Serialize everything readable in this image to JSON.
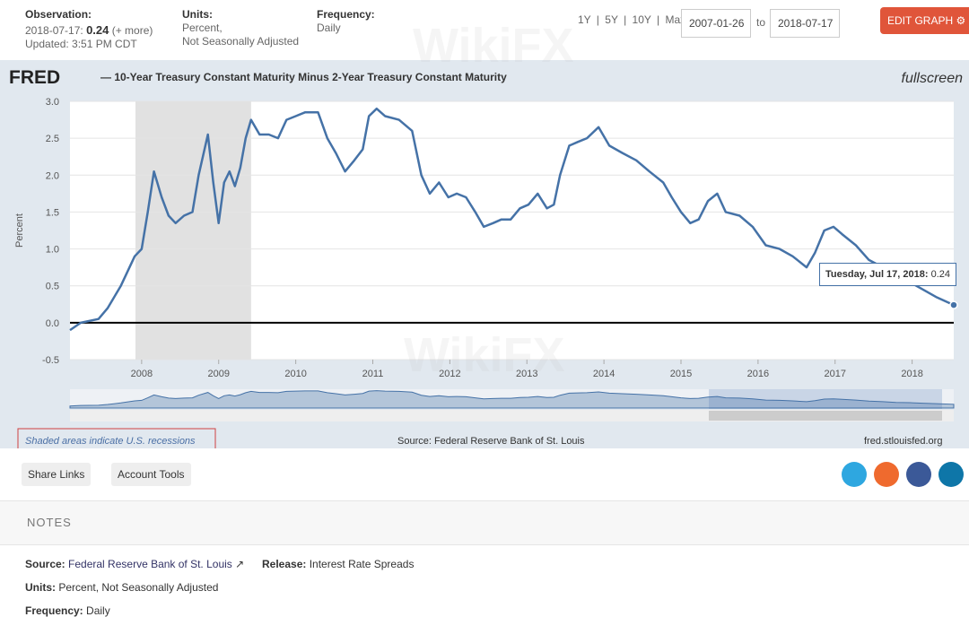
{
  "header": {
    "observation_label": "Observation:",
    "observation_date": "2018-07-17:",
    "observation_value": "0.24",
    "observation_more": "(+ more)",
    "updated": "Updated: 3:51 PM CDT",
    "units_label": "Units:",
    "units_lines": [
      "Percent,",
      "Not Seasonally Adjusted"
    ],
    "frequency_label": "Frequency:",
    "frequency": "Daily",
    "ranges": [
      "1Y",
      "5Y",
      "10Y",
      "Max"
    ],
    "start_date": "2007-01-26",
    "to": "to",
    "end_date": "2018-07-17",
    "edit_button": "EDIT GRAPH"
  },
  "chart_header": {
    "logo": "FRED",
    "title": "— 10-Year Treasury Constant Maturity Minus 2-Year Treasury Constant Maturity",
    "fullscreen": "fullscreen"
  },
  "chart_data": {
    "type": "line",
    "y_label": "Percent",
    "color": "#4572a7",
    "x": [
      2007.07,
      2007.21,
      2007.44,
      2007.56,
      2007.73,
      2007.91,
      2008.0,
      2008.08,
      2008.16,
      2008.26,
      2008.35,
      2008.44,
      2008.55,
      2008.66,
      2008.74,
      2008.86,
      2008.93,
      2009.0,
      2009.07,
      2009.14,
      2009.21,
      2009.28,
      2009.35,
      2009.42,
      2009.53,
      2009.65,
      2009.77,
      2009.88,
      2010.0,
      2010.12,
      2010.29,
      2010.41,
      2010.52,
      2010.64,
      2010.76,
      2010.87,
      2010.95,
      2011.05,
      2011.16,
      2011.34,
      2011.51,
      2011.63,
      2011.74,
      2011.86,
      2011.98,
      2012.09,
      2012.21,
      2012.33,
      2012.44,
      2012.56,
      2012.67,
      2012.79,
      2012.91,
      2013.02,
      2013.14,
      2013.26,
      2013.35,
      2013.43,
      2013.55,
      2013.66,
      2013.78,
      2013.93,
      2014.07,
      2014.24,
      2014.42,
      2014.59,
      2014.77,
      2014.88,
      2015.0,
      2015.12,
      2015.23,
      2015.35,
      2015.47,
      2015.58,
      2015.76,
      2015.93,
      2016.1,
      2016.28,
      2016.45,
      2016.63,
      2016.74,
      2016.86,
      2016.98,
      2017.09,
      2017.27,
      2017.44,
      2017.62,
      2017.79,
      2017.97,
      2018.14,
      2018.31,
      2018.54
    ],
    "values": [
      -0.1,
      0.0,
      0.05,
      0.2,
      0.5,
      0.9,
      1.0,
      1.5,
      2.05,
      1.7,
      1.45,
      1.35,
      1.45,
      1.5,
      2.0,
      2.55,
      1.9,
      1.35,
      1.9,
      2.05,
      1.85,
      2.1,
      2.5,
      2.75,
      2.55,
      2.55,
      2.5,
      2.75,
      2.8,
      2.85,
      2.85,
      2.5,
      2.3,
      2.05,
      2.2,
      2.35,
      2.8,
      2.9,
      2.8,
      2.75,
      2.6,
      2.0,
      1.75,
      1.9,
      1.7,
      1.75,
      1.7,
      1.5,
      1.3,
      1.35,
      1.4,
      1.4,
      1.55,
      1.6,
      1.75,
      1.55,
      1.6,
      2.0,
      2.4,
      2.45,
      2.5,
      2.65,
      2.4,
      2.3,
      2.2,
      2.05,
      1.9,
      1.7,
      1.5,
      1.35,
      1.4,
      1.65,
      1.75,
      1.5,
      1.45,
      1.3,
      1.05,
      1.0,
      0.9,
      0.75,
      0.95,
      1.25,
      1.3,
      1.2,
      1.05,
      0.85,
      0.75,
      0.6,
      0.55,
      0.45,
      0.35,
      0.24
    ],
    "xlim": [
      2007.07,
      2018.54
    ],
    "ylim": [
      -0.5,
      3.0
    ],
    "xticks": [
      2008,
      2009,
      2010,
      2011,
      2012,
      2013,
      2014,
      2015,
      2016,
      2017,
      2018
    ],
    "yticks": [
      {
        "value": -0.5,
        "label": "-0.5"
      },
      {
        "value": 0,
        "label": "0.0"
      },
      {
        "value": 0.5,
        "label": "0.5"
      },
      {
        "value": 1,
        "label": "1.0"
      },
      {
        "value": 1.5,
        "label": "1.5"
      },
      {
        "value": 2,
        "label": "2.0"
      },
      {
        "value": 2.5,
        "label": "2.5"
      },
      {
        "value": 3,
        "label": "3.0"
      }
    ],
    "grid": true,
    "recessions": [
      [
        2007.92,
        2009.42
      ]
    ],
    "tooltip": {
      "date": "Tuesday, Jul 17, 2018:",
      "value": "0.24"
    }
  },
  "footer": {
    "recession_note": "Shaded areas indicate U.S. recessions",
    "source": "Source: Federal Reserve Bank of St. Louis",
    "site": "fred.stlouisfed.org"
  },
  "actions": [
    "Share Links",
    "Account Tools"
  ],
  "notes": {
    "heading": "NOTES",
    "source_label": "Source:",
    "source": "Federal Reserve Bank of St. Louis",
    "release_label": "Release:",
    "release": "Interest Rate Spreads",
    "units_label": "Units:",
    "units": "Percent, Not Seasonally Adjusted",
    "frequency_label": "Frequency:",
    "frequency": "Daily"
  },
  "watermark": "WikiFX"
}
